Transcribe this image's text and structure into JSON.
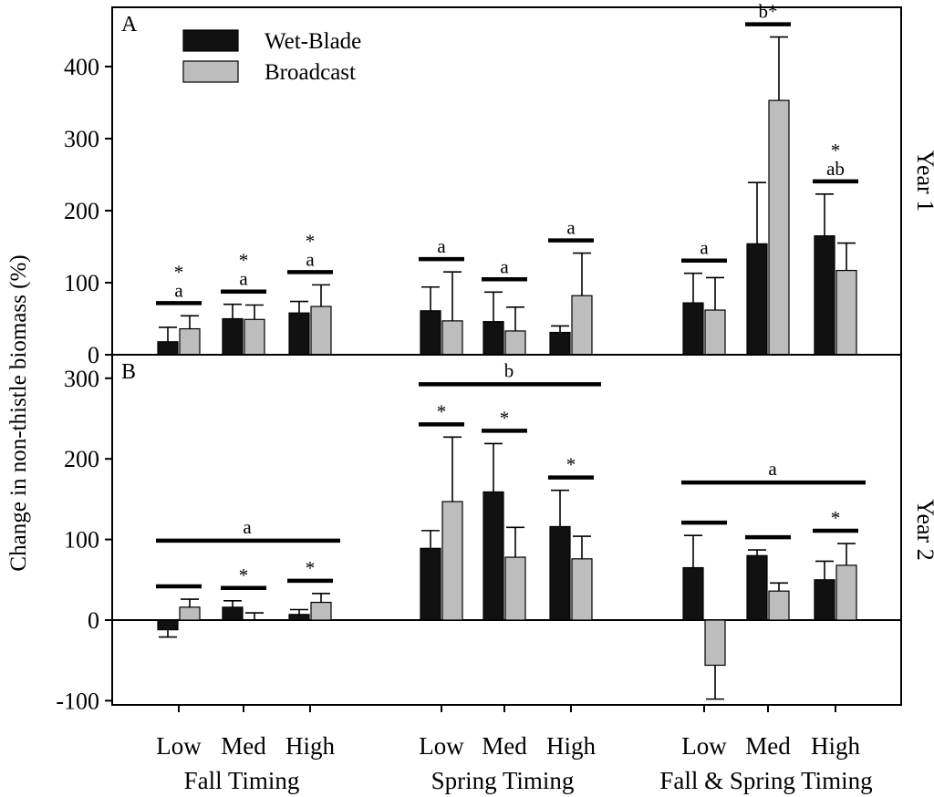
{
  "chart_data": [
    {
      "type": "bar",
      "panel": "A",
      "row_label": "Year 1",
      "ylim": [
        0,
        450
      ],
      "yticks": [
        "0",
        "100",
        "200",
        "300",
        "400"
      ],
      "groups": [
        "Fall Timing",
        "Spring Timing",
        "Fall & Spring Timing"
      ],
      "categories": [
        "Low",
        "Med",
        "High"
      ],
      "series": [
        {
          "name": "Wet-Blade",
          "color": "#111111",
          "values": [
            [
              18,
              50,
              58
            ],
            [
              61,
              46,
              31
            ],
            [
              72,
              154,
              165
            ]
          ],
          "errors": [
            [
              20,
              20,
              16
            ],
            [
              33,
              41,
              9
            ],
            [
              41,
              85,
              58
            ]
          ]
        },
        {
          "name": "Broadcast",
          "color": "#bdbdbd",
          "values": [
            [
              36,
              49,
              67
            ],
            [
              47,
              33,
              82
            ],
            [
              62,
              353,
              117
            ]
          ],
          "errors": [
            [
              18,
              20,
              30
            ],
            [
              68,
              33,
              59
            ],
            [
              45,
              88,
              38
            ]
          ]
        }
      ],
      "annotations": [
        {
          "group": 0,
          "cat": 0,
          "lines": [
            "*",
            "a"
          ]
        },
        {
          "group": 0,
          "cat": 1,
          "lines": [
            "*",
            "a"
          ]
        },
        {
          "group": 0,
          "cat": 2,
          "lines": [
            "*",
            "a"
          ]
        },
        {
          "group": 1,
          "cat": 0,
          "lines": [
            "a"
          ]
        },
        {
          "group": 1,
          "cat": 1,
          "lines": [
            "a"
          ]
        },
        {
          "group": 1,
          "cat": 2,
          "lines": [
            "a"
          ]
        },
        {
          "group": 2,
          "cat": 0,
          "lines": [
            "a"
          ]
        },
        {
          "group": 2,
          "cat": 1,
          "lines": [
            "b*"
          ]
        },
        {
          "group": 2,
          "cat": 2,
          "lines": [
            "*",
            "ab"
          ]
        }
      ],
      "group_annotations": []
    },
    {
      "type": "bar",
      "panel": "B",
      "row_label": "Year 2",
      "ylim": [
        -100,
        310
      ],
      "yticks": [
        "-100",
        "0",
        "100",
        "200",
        "300"
      ],
      "groups": [
        "Fall Timing",
        "Spring Timing",
        "Fall & Spring Timing"
      ],
      "categories": [
        "Low",
        "Med",
        "High"
      ],
      "series": [
        {
          "name": "Wet-Blade",
          "color": "#111111",
          "values": [
            [
              -12,
              16,
              7
            ],
            [
              89,
              159,
              116
            ],
            [
              65,
              80,
              50
            ]
          ],
          "errors": [
            [
              9,
              8,
              6
            ],
            [
              22,
              60,
              45
            ],
            [
              40,
              7,
              23
            ]
          ]
        },
        {
          "name": "Broadcast",
          "color": "#bdbdbd",
          "values": [
            [
              16,
              0,
              22
            ],
            [
              147,
              78,
              76
            ],
            [
              -56,
              36,
              68
            ]
          ],
          "errors": [
            [
              10,
              9,
              11
            ],
            [
              80,
              37,
              28
            ],
            [
              42,
              10,
              27
            ]
          ]
        }
      ],
      "annotations": [
        {
          "group": 0,
          "cat": 0,
          "lines": []
        },
        {
          "group": 0,
          "cat": 1,
          "lines": [
            "*"
          ]
        },
        {
          "group": 0,
          "cat": 2,
          "lines": [
            "*"
          ]
        },
        {
          "group": 1,
          "cat": 0,
          "lines": [
            "*"
          ]
        },
        {
          "group": 1,
          "cat": 1,
          "lines": [
            "*"
          ]
        },
        {
          "group": 1,
          "cat": 2,
          "lines": [
            "*"
          ]
        },
        {
          "group": 2,
          "cat": 0,
          "lines": []
        },
        {
          "group": 2,
          "cat": 1,
          "lines": []
        },
        {
          "group": 2,
          "cat": 2,
          "lines": [
            "*"
          ]
        }
      ],
      "group_annotations": [
        {
          "group": 0,
          "label": "a"
        },
        {
          "group": 1,
          "label": "b"
        },
        {
          "group": 2,
          "label": "a"
        }
      ]
    }
  ],
  "ylabel": "Change in non-thistle biomass (%)",
  "legend": [
    "Wet-Blade",
    "Broadcast"
  ]
}
